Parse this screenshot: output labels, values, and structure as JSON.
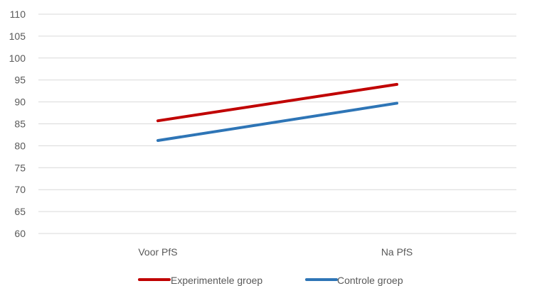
{
  "chart_data": {
    "type": "line",
    "categories": [
      "Voor PfS",
      "Na PfS"
    ],
    "series": [
      {
        "name": "Experimentele groep",
        "values": [
          85.7,
          94.0
        ],
        "color": "#c00000"
      },
      {
        "name": "Controle groep",
        "values": [
          81.2,
          89.7
        ],
        "color": "#2e75b6"
      }
    ],
    "ylim": [
      60,
      110
    ],
    "yticks": [
      60,
      65,
      70,
      75,
      80,
      85,
      90,
      95,
      100,
      105,
      110
    ],
    "grid": true,
    "legend_position": "bottom"
  }
}
